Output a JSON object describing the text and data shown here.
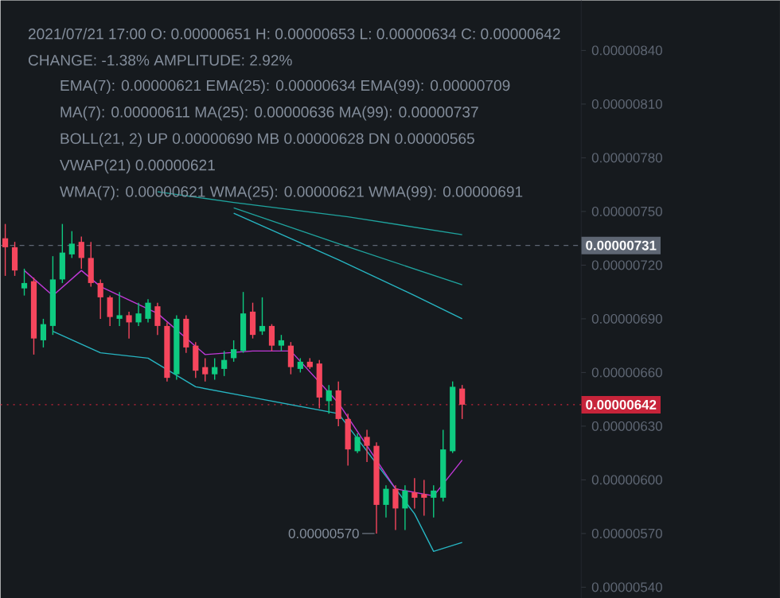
{
  "chart_data": {
    "type": "candlestick",
    "categories": [
      null,
      null,
      null,
      null,
      null,
      null,
      null,
      null,
      null,
      null,
      null,
      null,
      null,
      null,
      null,
      null,
      null,
      null,
      null,
      null,
      null,
      null,
      null,
      null,
      null,
      null,
      null,
      null,
      null,
      null,
      null,
      null,
      null,
      null,
      null,
      null,
      null,
      null,
      null,
      null,
      null,
      null,
      null,
      null,
      null,
      null,
      null,
      null,
      null,
      null,
      null,
      null,
      null,
      null,
      null,
      null,
      null,
      null,
      null,
      null,
      null
    ],
    "ohlc": [
      [
        7.35e-06,
        7.43e-06,
        7.14e-06,
        7.3e-06
      ],
      [
        7.3e-06,
        7.33e-06,
        7.14e-06,
        7.17e-06
      ],
      [
        7.07e-06,
        7.18e-06,
        7.03e-06,
        7.1e-06
      ],
      [
        7.11e-06,
        7.13e-06,
        6.7e-06,
        6.79e-06
      ],
      [
        6.78e-06,
        6.9e-06,
        6.74e-06,
        6.87e-06
      ],
      [
        6.86e-06,
        7.25e-06,
        6.81e-06,
        7.12e-06
      ],
      [
        7.12e-06,
        7.43e-06,
        7.1e-06,
        7.27e-06
      ],
      [
        7.26e-06,
        7.39e-06,
        7.24e-06,
        7.32e-06
      ],
      [
        7.33e-06,
        7.36e-06,
        7.18e-06,
        7.24e-06
      ],
      [
        7.24e-06,
        7.33e-06,
        7.08e-06,
        7.1e-06
      ],
      [
        7.1e-06,
        7.12e-06,
        6.9e-06,
        7.02e-06
      ],
      [
        7.02e-06,
        7.03e-06,
        6.86e-06,
        6.91e-06
      ],
      [
        6.9e-06,
        7.05e-06,
        6.86e-06,
        6.92e-06
      ],
      [
        6.92e-06,
        6.94e-06,
        6.79e-06,
        6.88e-06
      ],
      [
        6.88e-06,
        6.99e-06,
        6.86e-06,
        6.93e-06
      ],
      [
        6.9e-06,
        7.01e-06,
        6.88e-06,
        6.99e-06
      ],
      [
        6.97e-06,
        6.99e-06,
        6.81e-06,
        6.86e-06
      ],
      [
        6.86e-06,
        6.88e-06,
        6.55e-06,
        6.57e-06
      ],
      [
        6.59e-06,
        6.92e-06,
        6.56e-06,
        6.9e-06
      ],
      [
        6.9e-06,
        6.92e-06,
        6.71e-06,
        6.74e-06
      ],
      [
        6.75e-06,
        6.77e-06,
        6.57e-06,
        6.61e-06
      ],
      [
        6.63e-06,
        6.68e-06,
        6.55e-06,
        6.59e-06
      ],
      [
        6.59e-06,
        6.68e-06,
        6.56e-06,
        6.63e-06
      ],
      [
        6.62e-06,
        6.72e-06,
        6.58e-06,
        6.67e-06
      ],
      [
        6.68e-06,
        6.78e-06,
        6.66e-06,
        6.73e-06
      ],
      [
        6.72e-06,
        7.05e-06,
        6.71e-06,
        6.93e-06
      ],
      [
        6.94e-06,
        6.99e-06,
        6.79e-06,
        6.81e-06
      ],
      [
        6.83e-06,
        7.02e-06,
        6.81e-06,
        6.86e-06
      ],
      [
        6.86e-06,
        6.87e-06,
        6.72e-06,
        6.75e-06
      ],
      [
        6.75e-06,
        6.81e-06,
        6.72e-06,
        6.78e-06
      ],
      [
        6.75e-06,
        6.77e-06,
        6.59e-06,
        6.63e-06
      ],
      [
        6.62e-06,
        6.68e-06,
        6.6e-06,
        6.66e-06
      ],
      [
        6.66e-06,
        6.68e-06,
        6.62e-06,
        6.63e-06
      ],
      [
        6.65e-06,
        6.67e-06,
        6.4e-06,
        6.46e-06
      ],
      [
        6.44e-06,
        6.53e-06,
        6.37e-06,
        6.5e-06
      ],
      [
        6.5e-06,
        6.55e-06,
        6.3e-06,
        6.34e-06
      ],
      [
        6.34e-06,
        6.37e-06,
        6.08e-06,
        6.17e-06
      ],
      [
        6.16e-06,
        6.26e-06,
        6.15e-06,
        6.24e-06
      ],
      [
        6.24e-06,
        6.28e-06,
        6.1e-06,
        6.19e-06
      ],
      [
        6.19e-06,
        6.21e-06,
        5.7e-06,
        5.86e-06
      ],
      [
        5.86e-06,
        5.97e-06,
        5.79e-06,
        5.95e-06
      ],
      [
        5.95e-06,
        5.97e-06,
        5.72e-06,
        5.84e-06
      ],
      [
        5.84e-06,
        5.97e-06,
        5.72e-06,
        5.94e-06
      ],
      [
        5.93e-06,
        6.01e-06,
        5.84e-06,
        5.9e-06
      ],
      [
        5.92e-06,
        6e-06,
        5.8e-06,
        5.9e-06
      ],
      [
        5.9e-06,
        5.97e-06,
        5.79e-06,
        5.94e-06
      ],
      [
        5.9e-06,
        6.28e-06,
        5.88e-06,
        6.17e-06
      ],
      [
        6.16e-06,
        6.55e-06,
        6.15e-06,
        6.52e-06
      ],
      [
        6.51e-06,
        6.53e-06,
        6.34e-06,
        6.42e-06
      ],
      null,
      null,
      null,
      null,
      null,
      null,
      null,
      null,
      null,
      null,
      null,
      null
    ],
    "colors": [
      "#f6465d",
      "#f6465d",
      "#0ecb81",
      "#f6465d",
      "#0ecb81",
      "#0ecb81",
      "#0ecb81",
      "#0ecb81",
      "#f6465d",
      "#f6465d",
      "#f6465d",
      "#f6465d",
      "#0ecb81",
      "#f6465d",
      "#0ecb81",
      "#0ecb81",
      "#f6465d",
      "#f6465d",
      "#0ecb81",
      "#f6465d",
      "#f6465d",
      "#f6465d",
      "#0ecb81",
      "#0ecb81",
      "#0ecb81",
      "#0ecb81",
      "#f6465d",
      "#0ecb81",
      "#f6465d",
      "#0ecb81",
      "#f6465d",
      "#0ecb81",
      "#f6465d",
      "#f6465d",
      "#0ecb81",
      "#f6465d",
      "#f6465d",
      "#0ecb81",
      "#f6465d",
      "#f6465d",
      "#0ecb81",
      "#f6465d",
      "#0ecb81",
      "#f6465d",
      "#f6465d",
      "#0ecb81",
      "#0ecb81",
      "#0ecb81",
      "#f6465d",
      null,
      null,
      null,
      null,
      null,
      null,
      null,
      null,
      null,
      null,
      null,
      null
    ],
    "series": [
      {
        "type": "line",
        "color": "#1fa39e",
        "values": [
          null,
          null,
          null,
          null,
          null,
          null,
          null,
          null,
          null,
          null,
          null,
          null,
          null,
          null,
          null,
          null,
          7.61e-06,
          null,
          null,
          null,
          null,
          null,
          null,
          null,
          7.55e-06,
          null,
          null,
          null,
          null,
          null,
          null,
          null,
          null,
          null,
          null,
          null,
          7.47e-06,
          null,
          null,
          null,
          null,
          null,
          null,
          null,
          null,
          null,
          null,
          null,
          7.37e-06,
          null,
          null,
          null,
          null,
          null,
          null,
          null,
          null,
          null,
          null,
          null,
          null
        ]
      },
      {
        "type": "line",
        "color": "#1fa39e",
        "values": [
          null,
          null,
          null,
          null,
          null,
          null,
          null,
          null,
          null,
          null,
          null,
          null,
          null,
          null,
          null,
          null,
          null,
          null,
          null,
          null,
          null,
          null,
          null,
          null,
          7.52e-06,
          null,
          null,
          null,
          null,
          null,
          null,
          null,
          null,
          null,
          null,
          7.32e-06,
          null,
          null,
          null,
          null,
          null,
          null,
          null,
          null,
          null,
          null,
          null,
          null,
          7.09e-06,
          null,
          null,
          null,
          null,
          null,
          null,
          null,
          null,
          null,
          null,
          null,
          null
        ]
      },
      {
        "type": "line",
        "color": "#27b5c2",
        "values": [
          null,
          null,
          null,
          null,
          null,
          null,
          null,
          null,
          null,
          null,
          null,
          null,
          null,
          null,
          null,
          null,
          null,
          null,
          null,
          null,
          null,
          null,
          null,
          null,
          7.49e-06,
          null,
          null,
          null,
          null,
          null,
          null,
          null,
          null,
          null,
          null,
          7.23e-06,
          null,
          null,
          null,
          null,
          null,
          null,
          null,
          7.03e-06,
          null,
          null,
          null,
          null,
          6.9e-06,
          null,
          null,
          null,
          null,
          null,
          null,
          null,
          null,
          null,
          null,
          null,
          null
        ]
      },
      {
        "type": "line",
        "color": "#27b5c2",
        "values": [
          null,
          null,
          null,
          null,
          null,
          6.83e-06,
          null,
          null,
          null,
          null,
          6.71e-06,
          null,
          null,
          null,
          null,
          6.68e-06,
          null,
          null,
          null,
          null,
          6.52e-06,
          null,
          null,
          null,
          null,
          null,
          6.46e-06,
          null,
          null,
          null,
          null,
          null,
          null,
          null,
          null,
          6.37e-06,
          null,
          null,
          null,
          null,
          null,
          null,
          null,
          5.81e-06,
          null,
          5.6e-06,
          null,
          null,
          5.65e-06,
          null,
          null,
          null,
          null,
          null,
          null,
          null,
          null,
          null,
          null,
          null,
          null
        ]
      },
      {
        "type": "line",
        "color": "#c039d8",
        "values": [
          null,
          null,
          7.17e-06,
          null,
          null,
          7.03e-06,
          null,
          null,
          7.17e-06,
          null,
          7.08e-06,
          null,
          null,
          null,
          null,
          null,
          6.93e-06,
          null,
          null,
          null,
          null,
          6.7e-06,
          null,
          null,
          null,
          null,
          6.72e-06,
          null,
          null,
          null,
          6.72e-06,
          null,
          null,
          null,
          null,
          6.43e-06,
          null,
          null,
          null,
          null,
          null,
          5.95e-06,
          null,
          null,
          null,
          5.91e-06,
          null,
          null,
          6.11e-06,
          null,
          null,
          null,
          null,
          null,
          null,
          null,
          null,
          null,
          null,
          null,
          null
        ]
      }
    ],
    "ylim": [
      5.34e-06,
      8.68e-06
    ],
    "yticks": [
      {
        "value": 5.4e-06,
        "label": "0.00000540"
      },
      {
        "value": 5.7e-06,
        "label": "0.00000570"
      },
      {
        "value": 6e-06,
        "label": "0.00000600"
      },
      {
        "value": 6.3e-06,
        "label": "0.00000630"
      },
      {
        "value": 6.6e-06,
        "label": "0.00000660"
      },
      {
        "value": 6.9e-06,
        "label": "0.00000690"
      },
      {
        "value": 7.2e-06,
        "label": "0.00000720"
      },
      {
        "value": 7.5e-06,
        "label": "0.00000750"
      },
      {
        "value": 7.8e-06,
        "label": "0.00000780"
      },
      {
        "value": 8.1e-06,
        "label": "0.00000810"
      },
      {
        "value": 8.4e-06,
        "label": "0.00000840"
      }
    ],
    "tick_labels": "y",
    "ref_lines": [
      {
        "axis": "y",
        "value": 7.31e-06,
        "label": "0.00000731",
        "color": "#5e6673",
        "line_style": "dashed"
      },
      {
        "axis": "y",
        "value": 6.42e-06,
        "label": "0.00000642",
        "color": "#c7243a",
        "line_style": "dotted"
      }
    ],
    "annotations": [
      "2021/07/21 17:00 O: 0.00000651 H: 0.00000653 L: 0.00000634 C: 0.00000642",
      "CHANGE: -1.38% AMPLITUDE: 2.92%",
      "EMA(7): 0.00000621 EMA(25): 0.00000634 EMA(99): 0.00000709",
      "MA(7): 0.00000611 MA(25): 0.00000636 MA(99): 0.00000737",
      "BOLL(21, 2) UP 0.00000690 MB 0.00000628 DN 0.00000565",
      "VWAP(21) 0.00000621",
      "WMA(7): 0.00000621 WMA(25): 0.00000621 WMA(99): 0.00000691",
      "0.00000570"
    ]
  }
}
